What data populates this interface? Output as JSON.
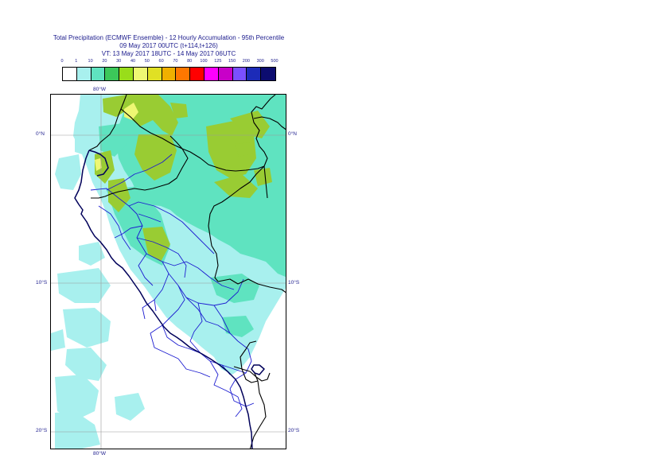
{
  "title": {
    "line1": "Total Precipitation (ECMWF Ensemble) - 12 Hourly Accumulation - 95th Percentile",
    "line2": "09 May 2017 00UTC (t+114,t+126)",
    "line3": "VT: 13 May 2017 18UTC - 14 May 2017 06UTC"
  },
  "legend": {
    "ticks": [
      "0",
      "1",
      "10",
      "20",
      "30",
      "40",
      "50",
      "60",
      "70",
      "80",
      "100",
      "125",
      "150",
      "200",
      "300",
      "500"
    ],
    "colors": [
      "#ffffff",
      "#a8f0ee",
      "#5fe3c0",
      "#3cc85a",
      "#99dd1a",
      "#eef773",
      "#e0e024",
      "#f0b000",
      "#ff7700",
      "#ff0000",
      "#ff00ff",
      "#c800c8",
      "#7a50ff",
      "#1c2bb8",
      "#0c0c70"
    ]
  },
  "axes": {
    "lon_top": "80°W",
    "lon_bottom": "80°W",
    "lat_labels": [
      "0°N",
      "10°S",
      "20°S"
    ]
  },
  "map": {
    "colors": {
      "light": "#a8f0ee",
      "medium": "#5fe3c0",
      "heavy": "#99cc33",
      "peak": "#eef773",
      "border": "#000000",
      "region": "#1c1cd0",
      "coast": "#00005a",
      "grid": "#9a9a9a"
    }
  }
}
